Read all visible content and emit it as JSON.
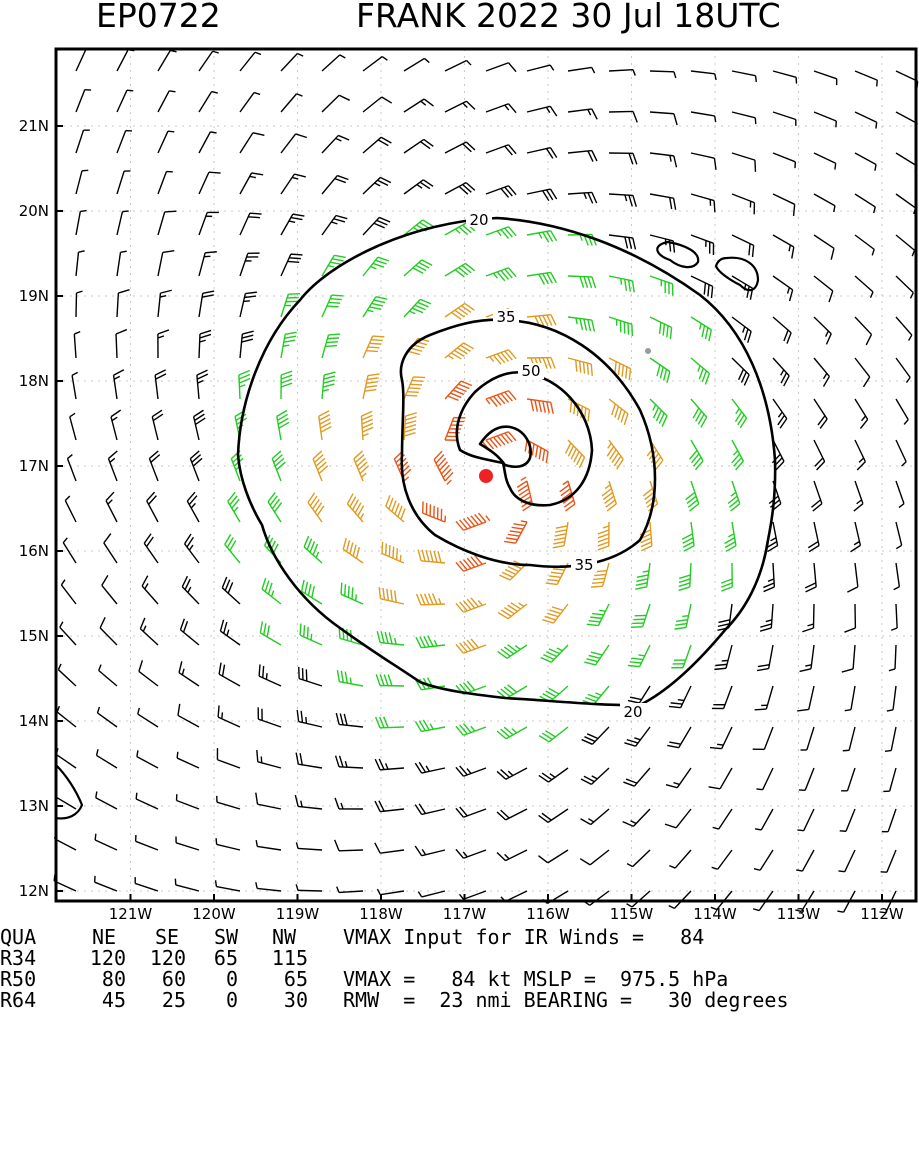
{
  "header": {
    "storm_id": "EP0722",
    "storm_info": "FRANK 2022 30 Jul 18UTC"
  },
  "map": {
    "lat_labels": [
      "21N",
      "20N",
      "19N",
      "18N",
      "17N",
      "16N",
      "15N",
      "14N",
      "13N",
      "12N"
    ],
    "lon_labels": [
      "121W",
      "120W",
      "119W",
      "118W",
      "117W",
      "116W",
      "115W",
      "114W",
      "113W",
      "112W"
    ],
    "contour_labels": {
      "wind_20": "20",
      "wind_35": "35",
      "wind_50": "50"
    },
    "storm_center": {
      "lat": 16.85,
      "lon": 116.6
    },
    "colors": {
      "below_34kt": "#000000",
      "gale_34_49kt": "#22cc22",
      "storm_50_63kt": "#e09a20",
      "hurricane_64kt": "#e85518",
      "center_dot": "#ee2222"
    }
  },
  "radii_table": {
    "headers": [
      "QUA",
      "NE",
      "SE",
      "SW",
      "NW"
    ],
    "rows": [
      [
        "R34",
        "120",
        "120",
        "65",
        "115"
      ],
      [
        "R50",
        "80",
        "60",
        "0",
        "65"
      ],
      [
        "R64",
        "45",
        "25",
        "0",
        "30"
      ]
    ]
  },
  "info": {
    "line1": "VMAX Input for IR Winds =   84",
    "line2": "VMAX =   84 kt MSLP =  975.5 hPa",
    "line3": "RMW  =  23 nmi BEARING =   30 degrees"
  }
}
